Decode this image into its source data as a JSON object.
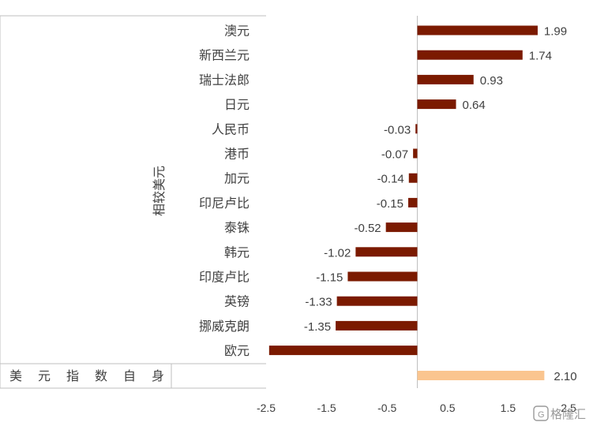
{
  "chart_data": {
    "type": "bar",
    "orientation": "horizontal",
    "ylabel": "相较美元",
    "group_label_bottom": "美元指数自身",
    "categories": [
      "澳元",
      "新西兰元",
      "瑞士法郎",
      "日元",
      "人民币",
      "港币",
      "加元",
      "印尼卢比",
      "泰铢",
      "韩元",
      "印度卢比",
      "英镑",
      "挪威克朗",
      "欧元"
    ],
    "values": [
      1.99,
      1.74,
      0.93,
      0.64,
      -0.03,
      -0.07,
      -0.14,
      -0.15,
      -0.52,
      -1.02,
      -1.15,
      -1.33,
      -1.35,
      -2.45
    ],
    "value_labels": [
      "1.99",
      "1.74",
      "0.93",
      "0.64",
      "-0.03",
      "-0.07",
      "-0.14",
      "-0.15",
      "-0.52",
      "-1.02",
      "-1.15",
      "-1.33",
      "-1.35",
      ""
    ],
    "index_value": 2.1,
    "index_label": "2.10",
    "xlim": [
      -2.5,
      2.5
    ],
    "xticks": [
      "-2.5",
      "-1.5",
      "-0.5",
      "0.5",
      "1.5",
      "2.5"
    ],
    "colors": {
      "bar": "#7B1A00",
      "index_bar": "#FAC58F",
      "axis": "#bfbfbf"
    }
  },
  "watermark": "格隆汇"
}
